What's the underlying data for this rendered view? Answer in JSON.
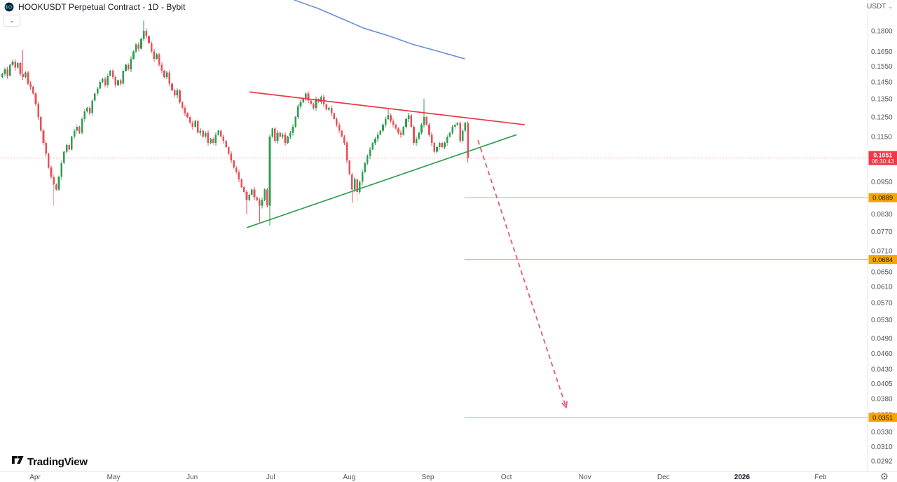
{
  "header": {
    "title": "HOOKUSDT Perpetual Contract - 1D - Bybit",
    "logo_icon": "hook-coin-logo",
    "collapse_chevron": "⌄"
  },
  "top_right": {
    "unit_label": "USDT",
    "chevron": "⌄"
  },
  "watermark": {
    "brand": "TradingView"
  },
  "colors": {
    "up": "#2e9e50",
    "down": "#e8505a",
    "resistance_line": "#e93848",
    "support_trendline": "#2e9e50",
    "ma_blue": "#6a8fd8",
    "level_line": "#f2a83d",
    "level_badge_bg": "#f7a600",
    "level_badge_text": "#1c1c1c",
    "last_price_badge_bg": "#f23645",
    "last_price_badge_text": "#ffffff",
    "arrow": "#e35a74",
    "axis_text": "#50535e",
    "axis_line": "#e0e3eb",
    "year_text": "#131722"
  },
  "chart_data": {
    "type": "candlestick",
    "symbol": "HOOKUSDT",
    "timeframe": "1D",
    "exchange": "Bybit",
    "scale": "log",
    "grid": "off",
    "ylim": [
      0.0267,
      0.2051
    ],
    "x_axis_labels": [
      "Apr",
      "May",
      "Jun",
      "Jul",
      "Aug",
      "Sep",
      "Oct",
      "Nov",
      "Dec",
      "2026",
      "Feb"
    ],
    "y_axis_ticks": [
      "0.1800",
      "0.1650",
      "0.1550",
      "0.1450",
      "0.1350",
      "0.1250",
      "0.1150",
      "0.0950",
      "0.0830",
      "0.0770",
      "0.0710",
      "0.0650",
      "0.0610",
      "0.0570",
      "0.0530",
      "0.0490",
      "0.0460",
      "0.0430",
      "0.0405",
      "0.0380",
      "0.0355",
      "0.0330",
      "0.0310",
      "0.0292"
    ],
    "last_price": 0.1051,
    "last_price_label": "0.1051",
    "countdown": "06:30:43",
    "first_open": 0.148,
    "closes": [
      0.15,
      0.153,
      0.149,
      0.156,
      0.158,
      0.154,
      0.157,
      0.15,
      0.148,
      0.151,
      0.144,
      0.142,
      0.138,
      0.132,
      0.125,
      0.118,
      0.112,
      0.107,
      0.101,
      0.097,
      0.094,
      0.092,
      0.097,
      0.103,
      0.108,
      0.111,
      0.109,
      0.115,
      0.118,
      0.12,
      0.117,
      0.124,
      0.128,
      0.13,
      0.127,
      0.134,
      0.138,
      0.141,
      0.145,
      0.147,
      0.143,
      0.149,
      0.152,
      0.148,
      0.143,
      0.146,
      0.144,
      0.152,
      0.156,
      0.153,
      0.16,
      0.165,
      0.17,
      0.167,
      0.174,
      0.18,
      0.176,
      0.171,
      0.165,
      0.16,
      0.163,
      0.156,
      0.152,
      0.148,
      0.151,
      0.144,
      0.14,
      0.137,
      0.14,
      0.133,
      0.13,
      0.127,
      0.125,
      0.122,
      0.12,
      0.123,
      0.117,
      0.118,
      0.115,
      0.117,
      0.112,
      0.114,
      0.112,
      0.116,
      0.118,
      0.115,
      0.113,
      0.11,
      0.107,
      0.104,
      0.101,
      0.099,
      0.096,
      0.093,
      0.091,
      0.088,
      0.09,
      0.092,
      0.089,
      0.088,
      0.086,
      0.088,
      0.092,
      0.086,
      0.115,
      0.119,
      0.113,
      0.117,
      0.115,
      0.116,
      0.112,
      0.115,
      0.117,
      0.12,
      0.125,
      0.131,
      0.133,
      0.135,
      0.138,
      0.134,
      0.132,
      0.13,
      0.135,
      0.133,
      0.136,
      0.132,
      0.129,
      0.13,
      0.127,
      0.124,
      0.121,
      0.118,
      0.115,
      0.112,
      0.104,
      0.098,
      0.092,
      0.096,
      0.091,
      0.095,
      0.099,
      0.103,
      0.106,
      0.109,
      0.112,
      0.114,
      0.116,
      0.118,
      0.121,
      0.124,
      0.126,
      0.123,
      0.121,
      0.119,
      0.117,
      0.116,
      0.12,
      0.124,
      0.126,
      0.12,
      0.112,
      0.114,
      0.117,
      0.121,
      0.125,
      0.121,
      0.116,
      0.112,
      0.108,
      0.11,
      0.112,
      0.11,
      0.112,
      0.115,
      0.117,
      0.12,
      0.121,
      0.122,
      0.113,
      0.118,
      0.122,
      0.1051
    ],
    "wick_overrides": {
      "8": [
        0.166,
        null
      ],
      "20": [
        null,
        0.086
      ],
      "55": [
        0.188,
        null
      ],
      "95": [
        null,
        0.083
      ],
      "100": [
        null,
        0.08
      ],
      "104": [
        null,
        0.079
      ],
      "136": [
        null,
        0.087
      ],
      "138": [
        null,
        0.0875
      ],
      "150": [
        0.13,
        null
      ],
      "164": [
        0.135,
        null
      ],
      "181": [
        null,
        0.103
      ]
    },
    "overlays": {
      "ma_blue": {
        "name": "moving-average",
        "points": [
          [
            114,
            0.205
          ],
          [
            123,
            0.198
          ],
          [
            133,
            0.189
          ],
          [
            141,
            0.182
          ],
          [
            151,
            0.176
          ],
          [
            160,
            0.17
          ],
          [
            170,
            0.165
          ],
          [
            180,
            0.16
          ]
        ]
      },
      "trendline_resistance": {
        "name": "descending-resistance-trendline",
        "from": [
          96.5,
          0.139
        ],
        "to": [
          203.5,
          0.121
        ]
      },
      "trendline_support": {
        "name": "ascending-support-trendline",
        "from": [
          95.4,
          0.0783
        ],
        "to": [
          200.3,
          0.116
        ]
      },
      "projection_arrow": {
        "name": "bearish-projection-arrow",
        "style": "dashed",
        "from": [
          185.3,
          0.1133
        ],
        "to": [
          219.6,
          0.0366
        ]
      },
      "support_levels": [
        {
          "label": "0.0889",
          "price": 0.0889,
          "start_index": 180.1
        },
        {
          "label": "0.0684",
          "price": 0.0684,
          "start_index": 180.1
        },
        {
          "label": "0.0351",
          "price": 0.0351,
          "start_index": 180.1
        }
      ],
      "current_price_line": {
        "price": 0.1051,
        "style": "dotted"
      }
    }
  }
}
